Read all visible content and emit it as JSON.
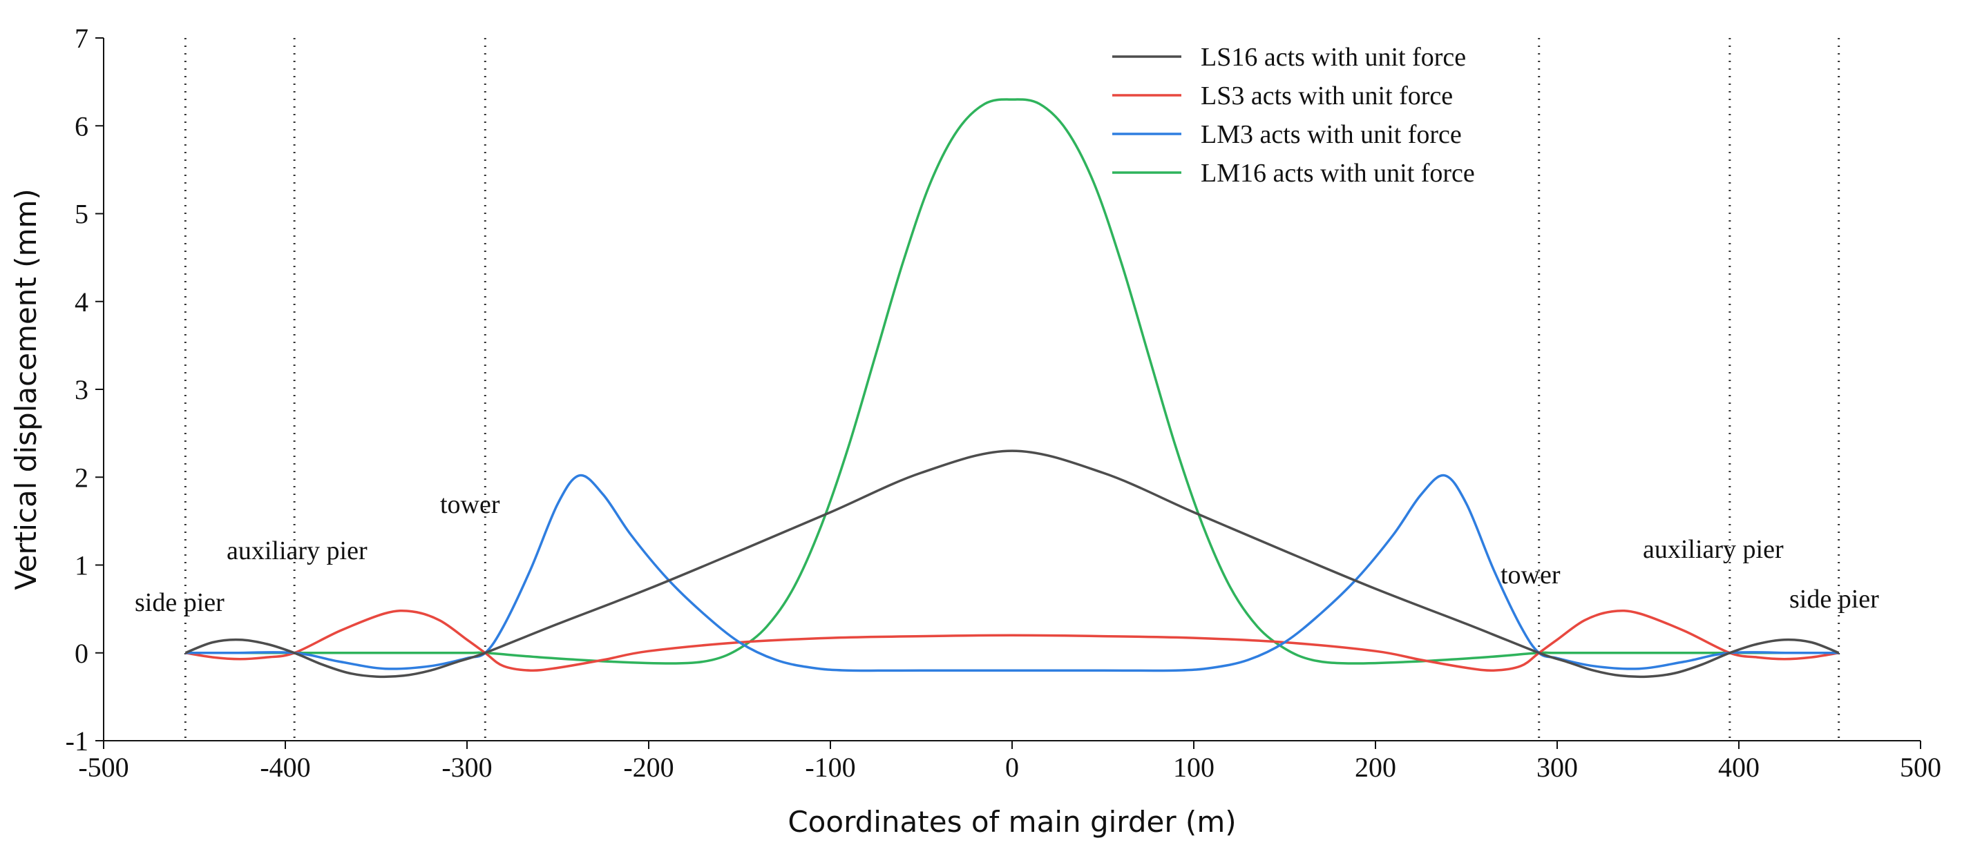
{
  "chart_data": {
    "type": "line",
    "title": "",
    "xlabel": "Coordinates of main girder (m)",
    "ylabel": "Vertical displacement (mm)",
    "xlim": [
      -500,
      500
    ],
    "ylim": [
      -1,
      7
    ],
    "xticks": [
      "-500",
      "-400",
      "-300",
      "-200",
      "-100",
      "0",
      "100",
      "200",
      "300",
      "400",
      "500"
    ],
    "yticks": [
      "-1",
      "0",
      "1",
      "2",
      "3",
      "4",
      "5",
      "6",
      "7"
    ],
    "grid": false,
    "legend_position": "top-right",
    "vertical_markers": [
      -455,
      -395,
      -290,
      290,
      395,
      455
    ],
    "annotations": {
      "side_pier_left": "side pier",
      "auxiliary_pier_left": "auxiliary pier",
      "tower_left": "tower",
      "tower_right": "tower",
      "auxiliary_pier_right": "auxiliary pier",
      "side_pier_right": "side pier"
    },
    "series": [
      {
        "name": "LS16 acts with unit force",
        "color": "#4d4d4d",
        "x": [
          -455,
          -440,
          -425,
          -410,
          -395,
          -380,
          -365,
          -350,
          -335,
          -320,
          -305,
          -290,
          -250,
          -200,
          -150,
          -100,
          -50,
          0,
          50,
          100,
          150,
          200,
          250,
          290,
          305,
          320,
          335,
          350,
          365,
          380,
          395,
          410,
          425,
          440,
          455
        ],
        "y": [
          0,
          0.12,
          0.15,
          0.1,
          0,
          -0.13,
          -0.23,
          -0.27,
          -0.26,
          -0.2,
          -0.1,
          0,
          0.33,
          0.73,
          1.16,
          1.6,
          2.05,
          2.3,
          2.05,
          1.6,
          1.16,
          0.73,
          0.33,
          0,
          -0.1,
          -0.2,
          -0.26,
          -0.27,
          -0.23,
          -0.13,
          0,
          0.1,
          0.15,
          0.12,
          0
        ]
      },
      {
        "name": "LS3 acts with unit force",
        "color": "#e8483f",
        "x": [
          -455,
          -440,
          -425,
          -410,
          -395,
          -370,
          -345,
          -330,
          -315,
          -300,
          -290,
          -280,
          -265,
          -250,
          -225,
          -200,
          -150,
          -100,
          -50,
          0,
          50,
          100,
          150,
          200,
          225,
          250,
          265,
          280,
          290,
          300,
          315,
          330,
          345,
          370,
          395,
          410,
          425,
          440,
          455
        ],
        "y": [
          0,
          -0.05,
          -0.07,
          -0.05,
          0,
          0.25,
          0.45,
          0.47,
          0.37,
          0.15,
          0,
          -0.15,
          -0.2,
          -0.17,
          -0.08,
          0.02,
          0.12,
          0.17,
          0.19,
          0.2,
          0.19,
          0.17,
          0.12,
          0.02,
          -0.08,
          -0.17,
          -0.2,
          -0.15,
          0,
          0.15,
          0.37,
          0.47,
          0.45,
          0.25,
          0,
          -0.05,
          -0.07,
          -0.05,
          0
        ]
      },
      {
        "name": "LM3 acts with unit force",
        "color": "#2f7ee0",
        "x": [
          -455,
          -430,
          -395,
          -370,
          -345,
          -320,
          -300,
          -290,
          -280,
          -265,
          -250,
          -238,
          -225,
          -210,
          -190,
          -170,
          -150,
          -130,
          -110,
          -90,
          -50,
          0,
          50,
          90,
          110,
          130,
          150,
          170,
          190,
          210,
          225,
          238,
          250,
          265,
          280,
          290,
          300,
          320,
          345,
          370,
          395,
          430,
          455
        ],
        "y": [
          0,
          0,
          0,
          -0.1,
          -0.18,
          -0.15,
          -0.06,
          0,
          0.3,
          0.95,
          1.7,
          2.02,
          1.8,
          1.35,
          0.85,
          0.45,
          0.12,
          -0.08,
          -0.17,
          -0.2,
          -0.2,
          -0.2,
          -0.2,
          -0.2,
          -0.17,
          -0.08,
          0.12,
          0.45,
          0.85,
          1.35,
          1.8,
          2.02,
          1.7,
          0.95,
          0.3,
          0,
          -0.06,
          -0.15,
          -0.18,
          -0.1,
          0,
          0,
          0
        ]
      },
      {
        "name": "LM16 acts with unit force",
        "color": "#2fb35c",
        "x": [
          -455,
          -400,
          -350,
          -300,
          -290,
          -260,
          -220,
          -185,
          -165,
          -150,
          -135,
          -120,
          -105,
          -90,
          -75,
          -60,
          -45,
          -30,
          -15,
          0,
          15,
          30,
          45,
          60,
          75,
          90,
          105,
          120,
          135,
          150,
          165,
          185,
          220,
          260,
          290,
          300,
          350,
          400,
          455
        ],
        "y": [
          0,
          0,
          0,
          0,
          0,
          -0.05,
          -0.1,
          -0.12,
          -0.08,
          0.05,
          0.3,
          0.75,
          1.45,
          2.35,
          3.4,
          4.45,
          5.35,
          5.95,
          6.25,
          6.3,
          6.25,
          5.95,
          5.35,
          4.45,
          3.4,
          2.35,
          1.45,
          0.75,
          0.3,
          0.05,
          -0.08,
          -0.12,
          -0.1,
          -0.05,
          0,
          0,
          0,
          0,
          0
        ]
      }
    ]
  }
}
